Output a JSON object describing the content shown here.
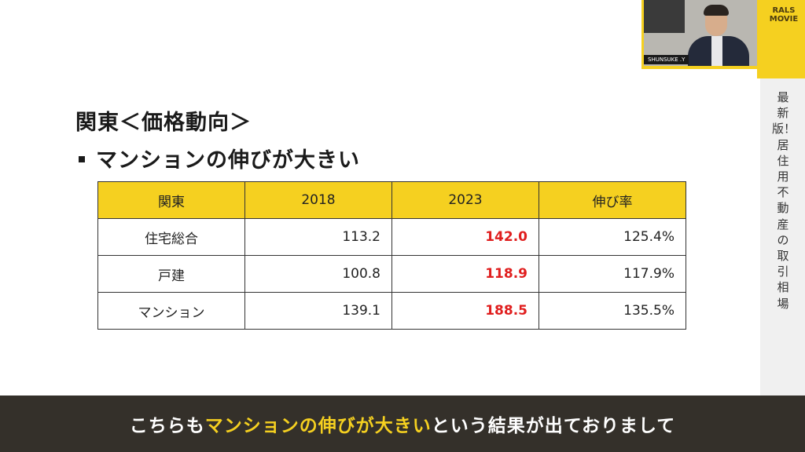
{
  "slide": {
    "title": "関東＜価格動向＞",
    "bullet": "マンションの伸びが大きい"
  },
  "table": {
    "headers": [
      "関東",
      "2018",
      "2023",
      "伸び率"
    ],
    "rows": [
      [
        "住宅総合",
        "113.2",
        "142.0",
        "125.4%"
      ],
      [
        "戸建",
        "100.8",
        "118.9",
        "117.9%"
      ],
      [
        "マンション",
        "139.1",
        "188.5",
        "135.5%"
      ]
    ],
    "highlight_color": "#e01e1e",
    "header_color": "#f5d020"
  },
  "side": {
    "vertical_title": "最新版！居住用不動産の取引相場"
  },
  "brand": {
    "line1": "RALS",
    "line2": "MOVIE"
  },
  "camera": {
    "name_tag": "SHUNSUKE .Y"
  },
  "subtitle": {
    "before": "こちらも",
    "highlight": "マンションの伸びが大きい",
    "after": "という結果が出ておりまして"
  }
}
